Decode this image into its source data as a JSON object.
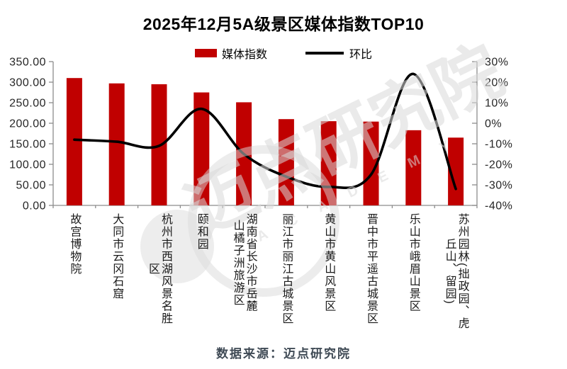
{
  "title": "2025年12月5A级景区媒体指数TOP10",
  "legend": {
    "bar_label": "媒体指数",
    "line_label": "环比"
  },
  "footer": "数据来源：迈点研究院",
  "watermark": {
    "text": "迈点研究院",
    "subtext": "A C A D E M Y"
  },
  "colors": {
    "bar": "#c00000",
    "line": "#000000",
    "axis": "#8c8c8c",
    "tick_text": "#262626",
    "footer_text": "#3f4a55",
    "watermark": "#d9d9d9"
  },
  "chart_data": {
    "type": "bar",
    "combo": "bar+line",
    "title": "2025年12月5A级景区媒体指数TOP10",
    "categories": [
      [
        "故宫博物院"
      ],
      [
        "大同市云冈石窟"
      ],
      [
        "杭州市西湖风景名胜",
        "区"
      ],
      [
        "颐和园"
      ],
      [
        "湖南省长沙市岳麓",
        "山橘子洲旅游区"
      ],
      [
        "丽江市丽江古城景区"
      ],
      [
        "黄山市黄山风景区"
      ],
      [
        "晋中市平遥古城景区"
      ],
      [
        "乐山市峨眉山景区"
      ],
      [
        "苏州园林(拙政园、虎",
        "丘山、留园)"
      ]
    ],
    "series": [
      {
        "name": "媒体指数",
        "type": "bar",
        "axis": "left",
        "color": "#c00000",
        "values": [
          310,
          297,
          295,
          275,
          251,
          210,
          205,
          204,
          183,
          165
        ]
      },
      {
        "name": "环比",
        "type": "line",
        "axis": "right",
        "color": "#000000",
        "unit": "%",
        "values": [
          -8,
          -9,
          -11,
          7,
          -15,
          -26,
          -31,
          -25,
          24,
          -32
        ]
      }
    ],
    "left_axis": {
      "min": 0,
      "max": 350,
      "step": 50,
      "ticks": [
        "350.00",
        "300.00",
        "250.00",
        "200.00",
        "150.00",
        "100.00",
        "50.00",
        "0.00"
      ]
    },
    "right_axis": {
      "min": -40,
      "max": 30,
      "step": 10,
      "ticks": [
        "30%",
        "20%",
        "10%",
        "0%",
        "-10%",
        "-20%",
        "-30%",
        "-40%"
      ]
    },
    "grid": false,
    "legend_position": "top"
  }
}
